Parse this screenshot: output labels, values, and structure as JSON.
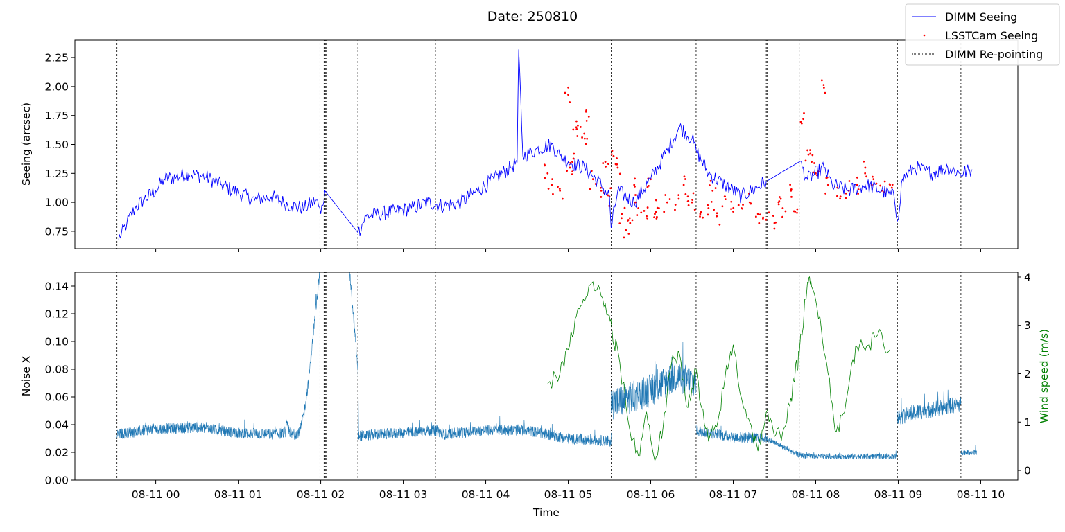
{
  "chart_data": {
    "type": "line",
    "title": "Date: 250810",
    "xlabel": "Time",
    "x_ticks": [
      "08-11 00",
      "08-11 01",
      "08-11 02",
      "08-11 03",
      "08-11 04",
      "08-11 05",
      "08-11 06",
      "08-11 07",
      "08-11 08",
      "08-11 09",
      "08-11 10"
    ],
    "x_tick_hours": [
      0,
      1,
      2,
      3,
      4,
      5,
      6,
      7,
      8,
      9,
      10
    ],
    "xlim_hours": [
      -0.98,
      10.45
    ],
    "x_units": "hours after 08-11 00:00",
    "legend": {
      "placement": "top-right",
      "entries": [
        "DIMM Seeing",
        "LSSTCam Seeing",
        "DIMM Re-pointing"
      ]
    },
    "repointing_hours": [
      -0.47,
      1.58,
      1.99,
      2.04,
      2.05,
      2.06,
      2.07,
      2.45,
      3.39,
      3.47,
      5.52,
      6.55,
      7.4,
      7.41,
      7.8,
      8.99,
      9.76
    ],
    "top_panel": {
      "ylabel": "Seeing (arcsec)",
      "ylim": [
        0.6,
        2.4
      ],
      "y_ticks": [
        "0.75",
        "1.00",
        "1.25",
        "1.50",
        "1.75",
        "2.00",
        "2.25"
      ],
      "y_tick_values": [
        0.75,
        1.0,
        1.25,
        1.5,
        1.75,
        2.0,
        2.25
      ],
      "dimm_seeing": {
        "color": "#0000ff",
        "x": [
          -0.45,
          -0.35,
          -0.25,
          -0.15,
          0.0,
          0.1,
          0.25,
          0.4,
          0.6,
          0.8,
          1.0,
          1.2,
          1.4,
          1.55,
          1.65,
          1.8,
          1.95,
          2.0,
          2.05,
          2.45,
          2.55,
          2.7,
          2.9,
          3.1,
          3.3,
          3.5,
          3.7,
          3.9,
          4.1,
          4.3,
          4.38,
          4.4,
          4.45,
          4.6,
          4.8,
          4.9,
          5.0,
          5.2,
          5.4,
          5.5,
          5.52,
          5.6,
          5.8,
          6.0,
          6.2,
          6.35,
          6.5,
          6.55,
          6.7,
          6.9,
          7.1,
          7.4,
          7.8,
          7.9,
          8.1,
          8.2,
          8.4,
          8.6,
          8.8,
          8.95,
          8.99,
          9.05,
          9.2,
          9.4,
          9.6,
          9.75,
          9.9
        ],
        "y": [
          0.68,
          0.82,
          0.95,
          1.02,
          1.1,
          1.2,
          1.22,
          1.25,
          1.22,
          1.15,
          1.08,
          1.02,
          1.05,
          1.0,
          0.97,
          0.95,
          1.02,
          0.9,
          1.1,
          0.74,
          0.88,
          0.9,
          0.92,
          0.95,
          1.0,
          0.97,
          1.0,
          1.1,
          1.2,
          1.3,
          1.35,
          2.32,
          1.4,
          1.45,
          1.5,
          1.4,
          1.35,
          1.3,
          1.15,
          1.05,
          0.78,
          1.1,
          1.0,
          1.2,
          1.45,
          1.65,
          1.55,
          1.45,
          1.25,
          1.15,
          1.05,
          1.18,
          1.35,
          1.2,
          1.3,
          1.15,
          1.1,
          1.15,
          1.1,
          1.05,
          0.84,
          1.2,
          1.3,
          1.25,
          1.3,
          1.25,
          1.28
        ]
      },
      "lsstcam_seeing": {
        "color": "#ff0000",
        "x": [
          4.75,
          4.8,
          4.9,
          5.0,
          5.02,
          5.05,
          5.1,
          5.15,
          5.2,
          5.25,
          5.3,
          5.4,
          5.45,
          5.5,
          5.55,
          5.6,
          5.65,
          5.7,
          5.75,
          5.8,
          5.85,
          5.95,
          6.0,
          6.05,
          6.1,
          6.2,
          6.3,
          6.4,
          6.45,
          6.5,
          6.6,
          6.7,
          6.75,
          6.8,
          6.9,
          7.0,
          7.1,
          7.2,
          7.3,
          7.4,
          7.5,
          7.55,
          7.6,
          7.7,
          7.75,
          7.85,
          7.9,
          7.95,
          8.0,
          8.1,
          8.15,
          8.3,
          8.4,
          8.5,
          8.6,
          8.7,
          8.8,
          8.9
        ],
        "y": [
          1.25,
          1.15,
          1.1,
          1.93,
          1.3,
          1.35,
          1.7,
          1.65,
          1.55,
          1.74,
          1.2,
          1.1,
          1.35,
          1.05,
          1.4,
          1.3,
          0.9,
          0.76,
          0.82,
          1.15,
          0.95,
          0.88,
          1.2,
          0.9,
          0.95,
          1.0,
          0.98,
          1.15,
          1.05,
          1.0,
          0.9,
          0.95,
          1.1,
          0.88,
          1.05,
          0.92,
          0.95,
          1.0,
          0.9,
          0.85,
          0.82,
          1.0,
          0.95,
          1.1,
          0.92,
          1.72,
          1.45,
          1.35,
          1.25,
          1.99,
          1.15,
          1.05,
          1.1,
          1.15,
          1.3,
          1.2,
          1.1,
          1.15
        ]
      }
    },
    "bottom_panel": {
      "ylabel": "Noise X",
      "ylim": [
        0.0,
        0.15
      ],
      "y_ticks": [
        "0.00",
        "0.02",
        "0.04",
        "0.06",
        "0.08",
        "0.10",
        "0.12",
        "0.14"
      ],
      "y_tick_values": [
        0.0,
        0.02,
        0.04,
        0.06,
        0.08,
        0.1,
        0.12,
        0.14
      ],
      "noise_x": {
        "color": "#1f77b4",
        "segments": [
          {
            "x": [
              -0.47,
              0.0,
              0.5,
              1.0,
              1.4,
              1.58
            ],
            "y": [
              0.033,
              0.037,
              0.038,
              0.034,
              0.033,
              0.034
            ],
            "band": 0.004
          },
          {
            "x": [
              1.58,
              1.65,
              1.75,
              1.8,
              1.85,
              1.9,
              1.95,
              1.99
            ],
            "y": [
              0.04,
              0.032,
              0.035,
              0.05,
              0.07,
              0.1,
              0.13,
              0.15
            ],
            "band": 0.004
          },
          {
            "x": [
              2.35,
              2.45,
              2.46,
              3.0,
              3.39,
              3.5,
              4.0,
              4.5,
              5.0,
              5.52
            ],
            "y": [
              0.15,
              0.08,
              0.032,
              0.034,
              0.036,
              0.033,
              0.036,
              0.036,
              0.03,
              0.028
            ],
            "band": 0.004
          },
          {
            "x": [
              5.52,
              5.8,
              6.0,
              6.3,
              6.55
            ],
            "y": [
              0.055,
              0.06,
              0.065,
              0.075,
              0.07
            ],
            "band": 0.012
          },
          {
            "x": [
              6.55,
              6.7,
              7.0,
              7.4
            ],
            "y": [
              0.036,
              0.034,
              0.031,
              0.03
            ],
            "band": 0.004
          },
          {
            "x": [
              7.4,
              7.8,
              8.0,
              8.5,
              8.99
            ],
            "y": [
              0.03,
              0.018,
              0.017,
              0.017,
              0.017
            ],
            "band": 0.002
          },
          {
            "x": [
              8.99,
              9.1,
              9.3,
              9.5,
              9.76
            ],
            "y": [
              0.045,
              0.047,
              0.05,
              0.052,
              0.055
            ],
            "band": 0.006
          },
          {
            "x": [
              9.76,
              9.95
            ],
            "y": [
              0.02,
              0.02
            ],
            "band": 0.002
          }
        ]
      },
      "wind_speed": {
        "ylabel": "Wind speed (m/s)",
        "color": "#008000",
        "ylim": [
          -0.2,
          4.1
        ],
        "y_ticks": [
          "0",
          "1",
          "2",
          "3",
          "4"
        ],
        "y_tick_values": [
          0,
          1,
          2,
          3,
          4
        ],
        "x": [
          4.75,
          4.9,
          5.0,
          5.1,
          5.2,
          5.3,
          5.4,
          5.5,
          5.55,
          5.6,
          5.75,
          5.85,
          5.95,
          6.05,
          6.15,
          6.25,
          6.35,
          6.45,
          6.55,
          6.6,
          6.7,
          6.8,
          6.9,
          7.0,
          7.1,
          7.2,
          7.3,
          7.4,
          7.5,
          7.6,
          7.7,
          7.75,
          7.8,
          7.9,
          7.95,
          8.05,
          8.15,
          8.25,
          8.35,
          8.45,
          8.55,
          8.65,
          8.75,
          8.9
        ],
        "y": [
          1.8,
          2.0,
          2.5,
          3.2,
          3.5,
          3.9,
          3.6,
          3.2,
          2.6,
          2.5,
          0.8,
          0.3,
          1.2,
          0.2,
          0.9,
          2.2,
          2.4,
          1.3,
          2.1,
          1.4,
          0.6,
          0.9,
          1.9,
          2.6,
          1.5,
          1.0,
          0.4,
          1.2,
          0.7,
          0.8,
          1.5,
          2.0,
          2.4,
          3.9,
          3.8,
          3.2,
          2.0,
          0.8,
          1.2,
          2.3,
          2.7,
          2.6,
          2.8,
          2.5
        ]
      }
    }
  }
}
